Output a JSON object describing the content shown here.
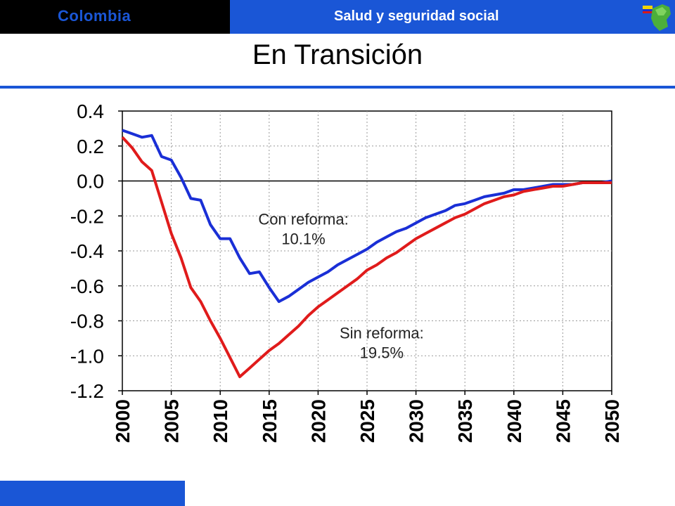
{
  "header": {
    "country": "Colombia",
    "section": "Salud y seguridad social"
  },
  "slide": {
    "title": "En Transición"
  },
  "colors": {
    "accent": "#1a56d6",
    "header_dark": "#000000",
    "con_reforma": "#1a2fd6",
    "sin_reforma": "#e01b1b"
  },
  "icons": {
    "logo": "colombia-map-flag-icon"
  },
  "chart_data": {
    "type": "line",
    "title": "",
    "xlabel": "",
    "ylabel": "",
    "xlim": [
      2000,
      2050
    ],
    "ylim": [
      -1.2,
      0.4
    ],
    "yticks": [
      "0.4",
      "0.2",
      "0.0",
      "-0.2",
      "-0.4",
      "-0.6",
      "-0.8",
      "-1.0",
      "-1.2"
    ],
    "xticks": [
      "2000",
      "2005",
      "2010",
      "2015",
      "2020",
      "2025",
      "2030",
      "2035",
      "2040",
      "2045",
      "2050"
    ],
    "grid": true,
    "series": [
      {
        "key": "con",
        "x": [
          2000,
          2001,
          2002,
          2003,
          2004,
          2005,
          2006,
          2007,
          2008,
          2009,
          2010,
          2011,
          2012,
          2013,
          2014,
          2015,
          2016,
          2017,
          2018,
          2019,
          2020,
          2021,
          2022,
          2023,
          2024,
          2025,
          2026,
          2027,
          2028,
          2029,
          2030,
          2031,
          2032,
          2033,
          2034,
          2035,
          2036,
          2037,
          2038,
          2039,
          2040,
          2041,
          2042,
          2043,
          2044,
          2045,
          2046,
          2047,
          2048,
          2049,
          2050
        ],
        "y": [
          0.29,
          0.27,
          0.25,
          0.26,
          0.14,
          0.12,
          0.02,
          -0.1,
          -0.11,
          -0.25,
          -0.33,
          -0.33,
          -0.44,
          -0.53,
          -0.52,
          -0.61,
          -0.69,
          -0.66,
          -0.62,
          -0.58,
          -0.55,
          -0.52,
          -0.48,
          -0.45,
          -0.42,
          -0.39,
          -0.35,
          -0.32,
          -0.29,
          -0.27,
          -0.24,
          -0.21,
          -0.19,
          -0.17,
          -0.14,
          -0.13,
          -0.11,
          -0.09,
          -0.08,
          -0.07,
          -0.05,
          -0.05,
          -0.04,
          -0.03,
          -0.02,
          -0.02,
          -0.02,
          -0.01,
          -0.01,
          -0.01,
          0.0
        ]
      },
      {
        "key": "sin",
        "x": [
          2000,
          2001,
          2002,
          2003,
          2004,
          2005,
          2006,
          2007,
          2008,
          2009,
          2010,
          2011,
          2012,
          2013,
          2014,
          2015,
          2016,
          2017,
          2018,
          2019,
          2020,
          2021,
          2022,
          2023,
          2024,
          2025,
          2026,
          2027,
          2028,
          2029,
          2030,
          2031,
          2032,
          2033,
          2034,
          2035,
          2036,
          2037,
          2038,
          2039,
          2040,
          2041,
          2042,
          2043,
          2044,
          2045,
          2046,
          2047,
          2048,
          2049,
          2050
        ],
        "y": [
          0.25,
          0.19,
          0.11,
          0.06,
          -0.12,
          -0.3,
          -0.44,
          -0.61,
          -0.69,
          -0.8,
          -0.9,
          -1.01,
          -1.12,
          -1.07,
          -1.02,
          -0.97,
          -0.93,
          -0.88,
          -0.83,
          -0.77,
          -0.72,
          -0.68,
          -0.64,
          -0.6,
          -0.56,
          -0.51,
          -0.48,
          -0.44,
          -0.41,
          -0.37,
          -0.33,
          -0.3,
          -0.27,
          -0.24,
          -0.21,
          -0.19,
          -0.16,
          -0.13,
          -0.11,
          -0.09,
          -0.08,
          -0.06,
          -0.05,
          -0.04,
          -0.03,
          -0.03,
          -0.02,
          -0.01,
          -0.01,
          -0.01,
          -0.01
        ]
      }
    ],
    "annotations": [
      {
        "key": "con",
        "label": "Con reforma:",
        "value": "10.1%",
        "x": 2018.5,
        "y": -0.25
      },
      {
        "key": "sin",
        "label": "Sin reforma:",
        "value": "19.5%",
        "x": 2026.5,
        "y": -0.9
      }
    ]
  }
}
